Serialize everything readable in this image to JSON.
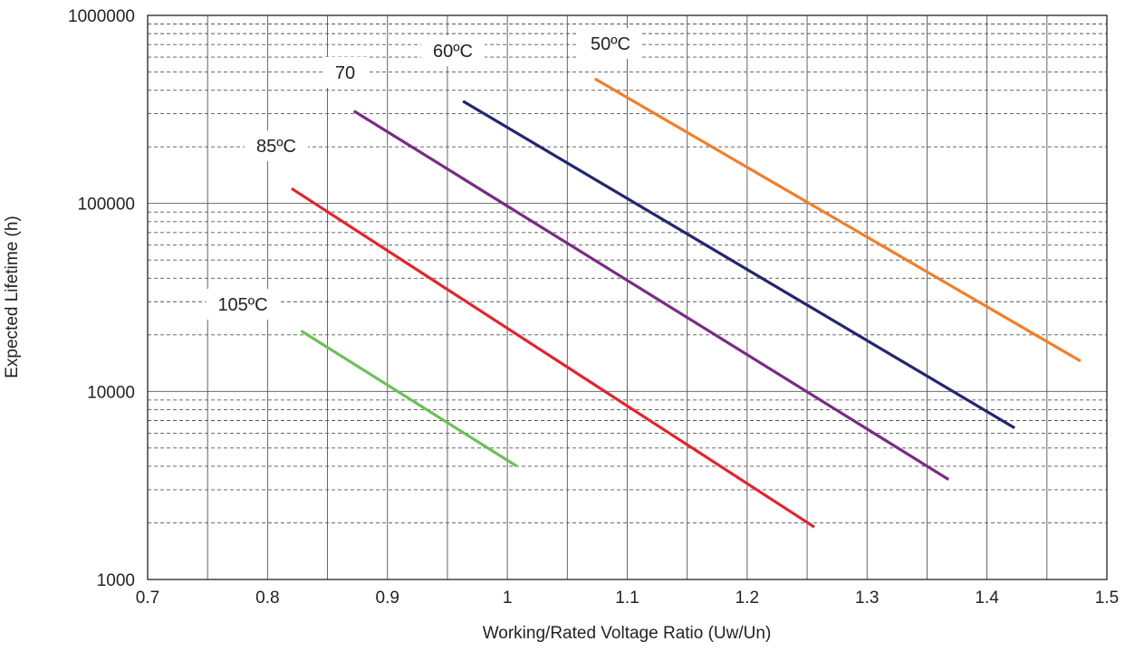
{
  "chart_data": {
    "type": "line",
    "title": "",
    "xlabel": "Working/Rated Voltage Ratio (Uw/Un)",
    "ylabel": "Expected Lifetime (h)",
    "xlim": [
      0.7,
      1.5
    ],
    "ylim": [
      1000,
      1000000
    ],
    "y_scale": "log",
    "grid": true,
    "x_ticks": [
      0.7,
      0.8,
      0.9,
      1,
      1.1,
      1.2,
      1.3,
      1.4,
      1.5
    ],
    "x_tick_labels": [
      "0.7",
      "0.8",
      "0.9",
      "1",
      "1.1",
      "1.2",
      "1.3",
      "1.4",
      "1.5"
    ],
    "y_ticks": [
      1000,
      10000,
      100000,
      1000000
    ],
    "y_tick_labels": [
      "1000",
      "10000",
      "100000",
      "1000000"
    ],
    "series": [
      {
        "name": "50ºC",
        "color": "#f07f2a",
        "x": [
          1.073,
          1.478
        ],
        "y": [
          460000,
          14500
        ]
      },
      {
        "name": "60ºC",
        "color": "#24266e",
        "x": [
          0.963,
          1.423
        ],
        "y": [
          350000,
          6400
        ]
      },
      {
        "name": "70",
        "color": "#7a2b86",
        "x": [
          0.872,
          1.368
        ],
        "y": [
          310000,
          3400
        ]
      },
      {
        "name": "85ºC",
        "color": "#e0252f",
        "x": [
          0.82,
          1.256
        ],
        "y": [
          120000,
          1900
        ]
      },
      {
        "name": "105ºC",
        "color": "#6cc05a",
        "x": [
          0.828,
          1.008
        ],
        "y": [
          21000,
          4000
        ]
      }
    ]
  }
}
